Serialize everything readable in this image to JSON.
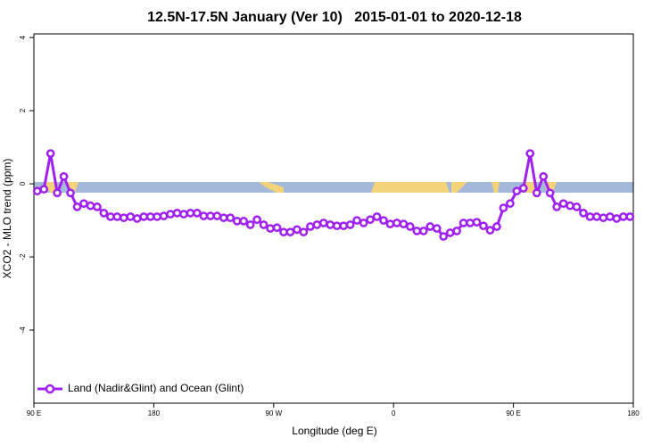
{
  "chart_data": {
    "type": "line",
    "title": "12.5N-17.5N January (Ver 10)   2015-01-01 to 2020-12-18",
    "x_label": "Longitude (deg E)",
    "y_label": "XCO2 - MLO trend (ppm)",
    "xlim": [
      90,
      540
    ],
    "ylim": [
      -6,
      4.1
    ],
    "xticks": [
      {
        "value": 90,
        "label": "90 E"
      },
      180,
      {
        "value": 270,
        "label": "90 W"
      },
      {
        "value": 360,
        "label": "0"
      },
      {
        "value": 450,
        "label": "90 E"
      },
      {
        "value": 540,
        "label": "180"
      }
    ],
    "yticks": [
      -4,
      -2,
      0,
      2,
      4
    ],
    "legend": "bottom-left",
    "x": [
      92.5,
      97.5,
      102.5,
      107.5,
      112.5,
      117.5,
      122.5,
      127.5,
      132.5,
      137.5,
      142.5,
      147.5,
      152.5,
      157.5,
      162.5,
      167.5,
      172.5,
      177.5,
      182.5,
      187.5,
      192.5,
      197.5,
      202.5,
      207.5,
      212.5,
      217.5,
      222.5,
      227.5,
      232.5,
      237.5,
      242.5,
      247.5,
      252.5,
      257.5,
      262.5,
      267.5,
      272.5,
      277.5,
      282.5,
      287.5,
      292.5,
      297.5,
      302.5,
      307.5,
      312.5,
      317.5,
      322.5,
      327.5,
      332.5,
      337.5,
      342.5,
      347.5,
      352.5,
      357.5,
      362.5,
      367.5,
      372.5,
      377.5,
      382.5,
      387.5,
      392.5,
      397.5,
      402.5,
      407.5,
      412.5,
      417.5,
      422.5,
      427.5,
      432.5,
      437.5,
      442.5,
      447.5,
      452.5,
      457.5,
      462.5,
      467.5,
      472.5,
      477.5,
      482.5,
      487.5,
      492.5,
      497.5,
      502.5,
      507.5,
      512.5,
      517.5,
      522.5,
      527.5,
      532.5,
      537.5
    ],
    "series": [
      {
        "name": "Land (Nadir&Glint) and Ocean (Glint)",
        "color": "#a020f0",
        "values": [
          -0.2,
          -0.15,
          0.83,
          -0.25,
          0.2,
          -0.25,
          -0.63,
          -0.54,
          -0.6,
          -0.63,
          -0.8,
          -0.9,
          -0.9,
          -0.93,
          -0.9,
          -0.95,
          -0.9,
          -0.9,
          -0.9,
          -0.88,
          -0.83,
          -0.8,
          -0.83,
          -0.8,
          -0.8,
          -0.88,
          -0.88,
          -0.88,
          -0.93,
          -0.93,
          -1.02,
          -1.02,
          -1.12,
          -0.98,
          -1.12,
          -1.22,
          -1.2,
          -1.32,
          -1.32,
          -1.25,
          -1.32,
          -1.17,
          -1.12,
          -1.07,
          -1.12,
          -1.15,
          -1.15,
          -1.12,
          -1.0,
          -1.07,
          -0.98,
          -0.9,
          -1.0,
          -1.1,
          -1.07,
          -1.1,
          -1.17,
          -1.29,
          -1.29,
          -1.17,
          -1.22,
          -1.44,
          -1.34,
          -1.29,
          -1.07,
          -1.07,
          -1.05,
          -1.15,
          -1.27,
          -1.17,
          -0.66,
          -0.54,
          -0.2,
          -0.12,
          0.83,
          -0.25,
          0.2,
          -0.25,
          -0.63,
          -0.54,
          -0.6,
          -0.63,
          -0.8,
          -0.9,
          -0.9,
          -0.93,
          -0.9,
          -0.95,
          -0.9,
          -0.9
        ]
      }
    ]
  }
}
